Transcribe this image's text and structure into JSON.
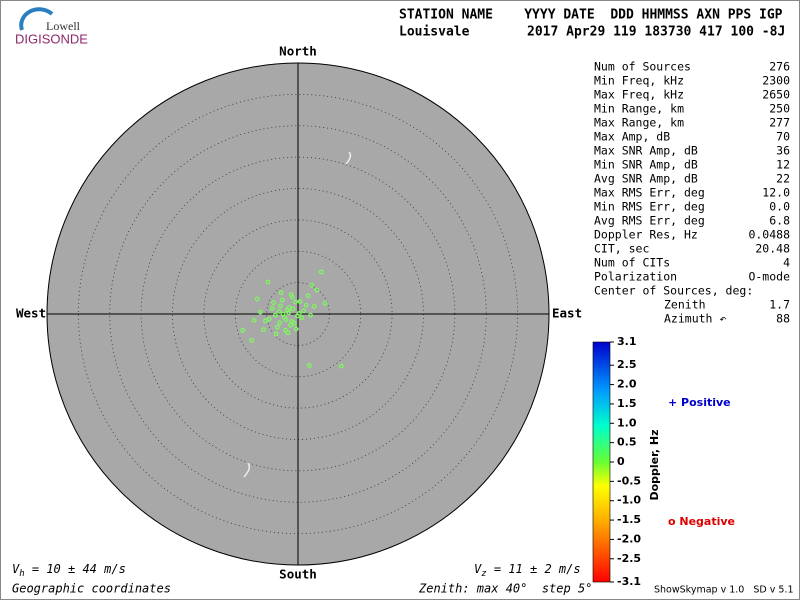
{
  "header": {
    "logo_top": "Lowell",
    "logo_bottom": "DIGISONDE",
    "columns": "STATION NAME    YYYY DATE  DDD HHMMSS AXN PPS IGP",
    "station": "Louisvale",
    "record": "2017 Apr29 119 183730 417 100 -8J"
  },
  "stats": {
    "rows": [
      [
        "Num of Sources",
        "276"
      ],
      [
        "Min Freq, kHz",
        "2300"
      ],
      [
        "Max Freq, kHz",
        "2650"
      ],
      [
        "Min Range, km",
        "250"
      ],
      [
        "Max Range, km",
        "277"
      ],
      [
        "Max Amp, dB",
        "70"
      ],
      [
        "Max SNR Amp, dB",
        "36"
      ],
      [
        "Min SNR Amp, dB",
        "12"
      ],
      [
        "Avg SNR Amp, dB",
        "22"
      ],
      [
        "Max RMS Err, deg",
        "12.0"
      ],
      [
        "Min RMS Err, deg",
        "0.0"
      ],
      [
        "Avg RMS Err, deg",
        "6.8"
      ],
      [
        "Doppler Res, Hz",
        "0.0488"
      ],
      [
        "CIT, sec",
        "20.48"
      ],
      [
        "Num of CITs",
        "4"
      ],
      [
        "Polarization",
        "O-mode"
      ]
    ],
    "center_title": "Center of Sources, deg:",
    "center_rows": [
      [
        "Zenith",
        "1.7"
      ],
      [
        "Azimuth ↶",
        "88"
      ]
    ]
  },
  "footer": {
    "vh_symbol": "V",
    "vh_sub": "h",
    "vh_text": " = 10 ± 44 m/s",
    "vz_symbol": "V",
    "vz_sub": "z",
    "vz_text": " = 11 ± 2 m/s",
    "coords": "Geographic coordinates",
    "zenith": "Zenith: max 40°  step 5°",
    "version": "ShowSkymap v 1.0   SD v 5.1"
  },
  "chart_data": {
    "type": "scatter",
    "directions": {
      "north": "North",
      "south": "South",
      "east": "East",
      "west": "West"
    },
    "rlim": [
      0,
      40
    ],
    "rticks": [
      5,
      10,
      15,
      20,
      25,
      30,
      35
    ],
    "color": "#7cfc5c",
    "x": [
      -1.5,
      -2.2,
      -0.8,
      -3.0,
      -1.0,
      0.2,
      -2.8,
      -1.9,
      -0.4,
      -3.6,
      -2.5,
      -1.2,
      0.6,
      -4.1,
      -1.7,
      -0.1,
      -2.9,
      -0.9,
      -3.3,
      -1.4,
      0.9,
      -2.0,
      -4.6,
      -0.6,
      1.3,
      -1.1,
      -3.9,
      -2.4,
      0.3,
      -5.2,
      -1.6,
      2.0,
      -2.7,
      -0.3,
      -6.0,
      1.6,
      -3.5,
      2.6,
      -5.5,
      -7.0,
      3.7,
      6.9,
      1.8,
      -8.8,
      -7.4,
      4.3,
      -4.8,
      3.0,
      2.2,
      -6.5
    ],
    "y": [
      0.2,
      -0.5,
      0.8,
      0.4,
      -1.2,
      0.1,
      1.3,
      -0.9,
      1.9,
      -0.2,
      2.2,
      -1.8,
      -0.6,
      0.9,
      0.6,
      -0.3,
      -1.4,
      2.7,
      -2.1,
      1.0,
      0.5,
      -2.6,
      -0.8,
      -1.5,
      1.4,
      3.1,
      1.8,
      0.0,
      2.0,
      -1.1,
      -3.0,
      -0.2,
      3.4,
      -2.4,
      0.3,
      2.9,
      -3.2,
      1.2,
      -2.5,
      -1.0,
      6.7,
      -8.3,
      -8.2,
      -2.6,
      -4.2,
      1.7,
      5.1,
      3.8,
      4.6,
      2.4
    ],
    "colorbar": {
      "label": "Doppler, Hz",
      "lim": [
        -3.1,
        3.1
      ],
      "ticks": [
        3.1,
        2.5,
        {
          "value": 2,
          "label": "2.0"
        },
        1.5,
        {
          "value": 1,
          "label": "1.0"
        },
        0.5,
        0,
        -0.5,
        {
          "value": -1,
          "label": "-1.0"
        },
        -1.5,
        {
          "value": -2,
          "label": "-2.0"
        },
        -2.5,
        -3.1
      ],
      "positive": "+ Positive",
      "negative": "o Negative"
    }
  }
}
